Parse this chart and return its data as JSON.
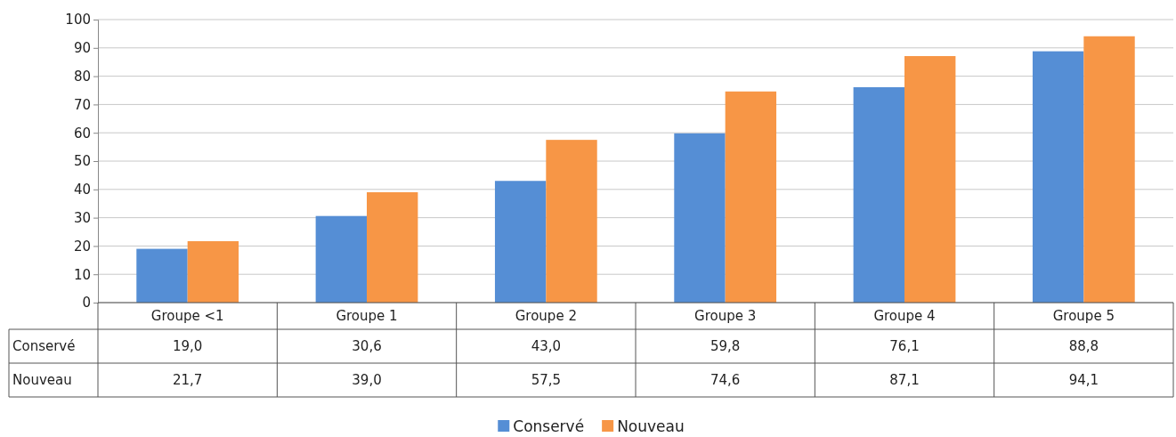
{
  "chart_data": {
    "type": "bar",
    "categories": [
      "Groupe <1",
      "Groupe 1",
      "Groupe 2",
      "Groupe 3",
      "Groupe 4",
      "Groupe 5"
    ],
    "series": [
      {
        "name": "Conservé",
        "color": "#558ed5",
        "values": [
          19.0,
          30.6,
          43.0,
          59.8,
          76.1,
          88.8
        ],
        "value_labels": [
          "19,0",
          "30,6",
          "43,0",
          "59,8",
          "76,1",
          "88,8"
        ]
      },
      {
        "name": "Nouveau",
        "color": "#f79646",
        "values": [
          21.7,
          39.0,
          57.5,
          74.6,
          87.1,
          94.1
        ],
        "value_labels": [
          "21,7",
          "39,0",
          "57,5",
          "74,6",
          "87,1",
          "94,1"
        ]
      }
    ],
    "ylim": [
      0,
      100
    ],
    "yticks": [
      0,
      10,
      20,
      30,
      40,
      50,
      60,
      70,
      80,
      90,
      100
    ],
    "grid": "y",
    "legend": "bottom"
  }
}
